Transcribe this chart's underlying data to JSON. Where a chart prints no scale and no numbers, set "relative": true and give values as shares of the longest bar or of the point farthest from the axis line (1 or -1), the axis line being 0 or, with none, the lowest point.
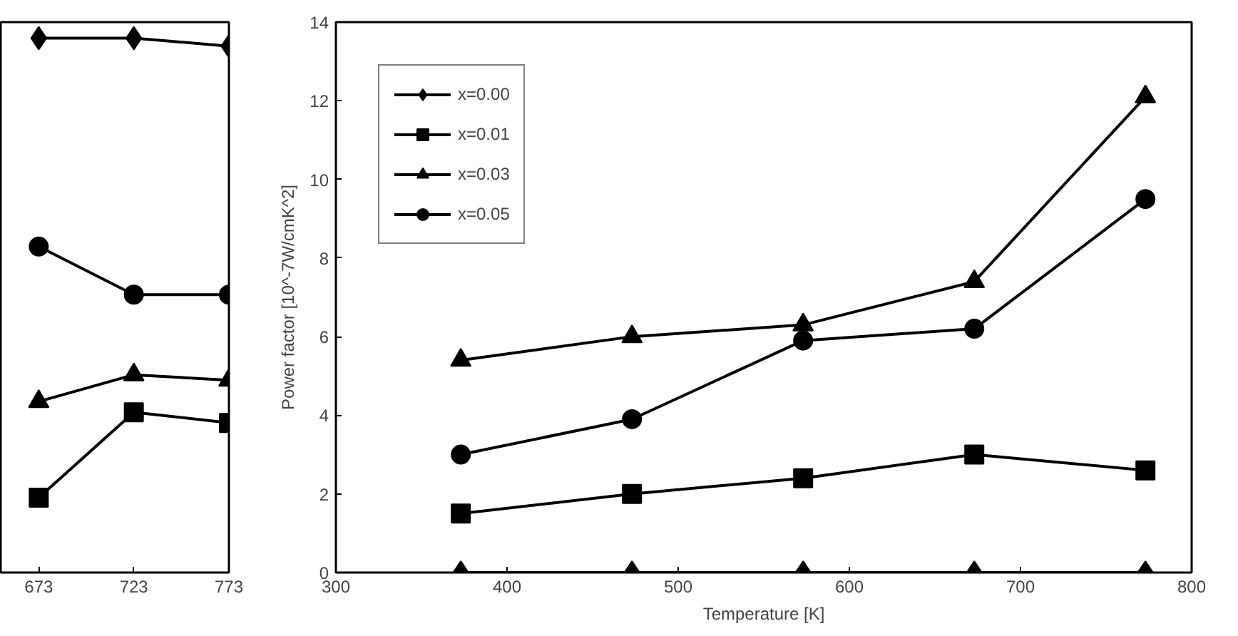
{
  "chart_data": [
    {
      "type": "line",
      "relative": true,
      "x": [
        673,
        723,
        773
      ],
      "xlim": [
        653,
        773
      ],
      "xticks": [
        673,
        723,
        773
      ],
      "tick_labels": "x",
      "grid": false,
      "legend": false,
      "series": [
        {
          "color": "#000000",
          "marker": "diamond",
          "values": [
            1.0,
            1.0,
            0.985
          ]
        },
        {
          "color": "#000000",
          "marker": "square",
          "values": [
            0.14,
            0.3,
            0.28
          ]
        },
        {
          "color": "#000000",
          "marker": "triangle",
          "values": [
            0.32,
            0.37,
            0.36
          ]
        },
        {
          "color": "#000000",
          "marker": "circle",
          "values": [
            0.61,
            0.52,
            0.52
          ]
        }
      ]
    },
    {
      "type": "line",
      "xlabel": "Temperature [K]",
      "ylabel": "Power factor [10^-7W/cmK^2]",
      "x": [
        373,
        473,
        573,
        673,
        773
      ],
      "xlim": [
        300,
        800
      ],
      "xticks": [
        300,
        400,
        500,
        600,
        700,
        800
      ],
      "ylim": [
        0,
        14
      ],
      "yticks": [
        0,
        2,
        4,
        6,
        8,
        10,
        12,
        14
      ],
      "grid": false,
      "legend": "top left",
      "series": [
        {
          "name": "x=0.00",
          "color": "#000000",
          "marker": "diamond",
          "values": [
            0,
            0,
            0,
            0,
            0
          ]
        },
        {
          "name": "x=0.01",
          "color": "#000000",
          "marker": "square",
          "values": [
            1.5,
            2.0,
            2.4,
            3.0,
            2.6
          ]
        },
        {
          "name": "x=0.03",
          "color": "#000000",
          "marker": "triangle",
          "values": [
            5.4,
            6.0,
            6.3,
            7.4,
            12.1
          ]
        },
        {
          "name": "x=0.05",
          "color": "#000000",
          "marker": "circle",
          "values": [
            3.0,
            3.9,
            5.9,
            6.2,
            9.5
          ]
        }
      ]
    }
  ]
}
